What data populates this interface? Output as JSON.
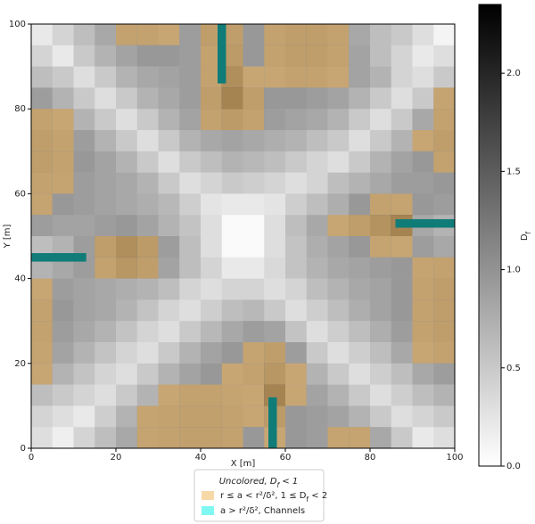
{
  "chart_data": {
    "type": "heatmap",
    "xlabel": "X [m]",
    "ylabel": "Y [m]",
    "xlim": [
      0,
      100
    ],
    "ylim": [
      0,
      100
    ],
    "xticks": [
      0,
      20,
      40,
      60,
      80,
      100
    ],
    "yticks": [
      0,
      20,
      40,
      60,
      80,
      100
    ],
    "z": [
      [
        0.2,
        0.4,
        0.6,
        0.8,
        1.1,
        1.1,
        1.0,
        0.9,
        1.2,
        1.2,
        0.95,
        1.1,
        1.2,
        1.2,
        1.1,
        0.8,
        0.6,
        0.5,
        0.3,
        0.1
      ],
      [
        0.4,
        0.2,
        0.5,
        0.7,
        0.85,
        0.95,
        0.95,
        0.9,
        1.1,
        1.3,
        0.95,
        1.1,
        1.2,
        1.2,
        1.1,
        0.85,
        0.6,
        0.4,
        0.2,
        0.3
      ],
      [
        0.6,
        0.5,
        0.3,
        0.5,
        0.7,
        0.8,
        0.85,
        0.9,
        1.1,
        1.6,
        1.0,
        1.0,
        1.1,
        1.1,
        1.0,
        0.85,
        0.7,
        0.4,
        0.3,
        0.5
      ],
      [
        0.9,
        0.7,
        0.5,
        0.3,
        0.5,
        0.7,
        0.8,
        0.9,
        1.2,
        1.9,
        1.2,
        0.95,
        0.95,
        0.9,
        0.85,
        0.7,
        0.5,
        0.3,
        0.5,
        1.05
      ],
      [
        1.1,
        1.0,
        0.7,
        0.5,
        0.3,
        0.5,
        0.7,
        0.85,
        1.1,
        1.3,
        1.1,
        0.9,
        0.85,
        0.8,
        0.7,
        0.5,
        0.3,
        0.5,
        0.8,
        1.1
      ],
      [
        1.2,
        1.1,
        0.9,
        0.7,
        0.5,
        0.3,
        0.5,
        0.7,
        0.8,
        0.85,
        0.8,
        0.75,
        0.7,
        0.6,
        0.5,
        0.3,
        0.5,
        0.7,
        1.0,
        1.2
      ],
      [
        1.2,
        1.1,
        0.95,
        0.85,
        0.7,
        0.5,
        0.3,
        0.5,
        0.6,
        0.7,
        0.65,
        0.6,
        0.5,
        0.4,
        0.3,
        0.5,
        0.7,
        0.85,
        0.95,
        1.1
      ],
      [
        1.1,
        1.05,
        0.9,
        0.85,
        0.8,
        0.7,
        0.5,
        0.3,
        0.4,
        0.5,
        0.45,
        0.4,
        0.3,
        0.4,
        0.6,
        0.7,
        0.8,
        0.9,
        0.9,
        0.95
      ],
      [
        1.05,
        0.95,
        0.9,
        0.85,
        0.8,
        0.75,
        0.65,
        0.45,
        0.25,
        0.2,
        0.2,
        0.25,
        0.45,
        0.6,
        0.75,
        0.95,
        1.1,
        1.05,
        0.95,
        0.9
      ],
      [
        0.9,
        0.85,
        0.85,
        0.9,
        0.95,
        0.85,
        0.7,
        0.55,
        0.3,
        0.05,
        0.05,
        0.3,
        0.6,
        0.8,
        1.0,
        1.2,
        1.5,
        1.9,
        0.8,
        0.7
      ],
      [
        0.6,
        0.7,
        0.9,
        1.2,
        1.6,
        1.3,
        0.9,
        0.6,
        0.3,
        0.05,
        0.05,
        0.3,
        0.55,
        0.75,
        0.85,
        0.95,
        1.05,
        1.0,
        0.9,
        0.8
      ],
      [
        0.7,
        0.8,
        0.9,
        1.1,
        1.4,
        1.2,
        0.85,
        0.6,
        0.4,
        0.2,
        0.2,
        0.35,
        0.55,
        0.7,
        0.8,
        0.85,
        0.9,
        0.95,
        1.05,
        1.1
      ],
      [
        1.0,
        0.9,
        0.85,
        0.8,
        0.75,
        0.7,
        0.6,
        0.4,
        0.3,
        0.4,
        0.4,
        0.3,
        0.4,
        0.6,
        0.7,
        0.8,
        0.85,
        0.95,
        1.1,
        1.2
      ],
      [
        1.1,
        0.95,
        0.85,
        0.8,
        0.7,
        0.55,
        0.4,
        0.3,
        0.45,
        0.6,
        0.65,
        0.5,
        0.3,
        0.45,
        0.6,
        0.75,
        0.85,
        0.95,
        1.1,
        1.2
      ],
      [
        1.1,
        0.9,
        0.8,
        0.7,
        0.55,
        0.4,
        0.3,
        0.5,
        0.65,
        0.8,
        0.9,
        0.85,
        0.55,
        0.3,
        0.45,
        0.6,
        0.75,
        0.9,
        1.1,
        1.2
      ],
      [
        1.05,
        0.85,
        0.7,
        0.55,
        0.4,
        0.3,
        0.5,
        0.7,
        0.85,
        0.95,
        1.05,
        1.2,
        0.9,
        0.5,
        0.3,
        0.45,
        0.6,
        0.8,
        1.0,
        1.1
      ],
      [
        1.0,
        0.7,
        0.55,
        0.4,
        0.3,
        0.5,
        0.7,
        0.85,
        0.95,
        1.0,
        1.1,
        1.4,
        1.0,
        0.7,
        0.5,
        0.3,
        0.45,
        0.6,
        0.8,
        0.9
      ],
      [
        0.6,
        0.5,
        0.4,
        0.3,
        0.5,
        0.7,
        1.0,
        1.1,
        1.1,
        1.05,
        1.0,
        1.9,
        1.0,
        0.85,
        0.7,
        0.5,
        0.3,
        0.45,
        0.6,
        0.7
      ],
      [
        0.4,
        0.3,
        0.2,
        0.45,
        0.7,
        1.05,
        1.1,
        1.15,
        1.15,
        1.1,
        1.0,
        1.3,
        0.95,
        0.9,
        0.85,
        0.7,
        0.5,
        0.3,
        0.4,
        0.5
      ],
      [
        0.3,
        0.15,
        0.4,
        0.6,
        0.8,
        1.05,
        1.1,
        1.15,
        1.15,
        1.1,
        0.95,
        1.0,
        0.95,
        0.9,
        1.05,
        1.05,
        0.8,
        0.5,
        0.2,
        0.3
      ]
    ],
    "clim": [
      0,
      2.35
    ],
    "colorbar_ticks": [
      {
        "value": 0,
        "label": "0.0"
      },
      0.5,
      {
        "value": 1,
        "label": "1.0"
      },
      {
        "value": 1.5,
        "label": "1.5"
      },
      {
        "value": 2,
        "label": "2.0"
      }
    ],
    "colorbar_label": {
      "text": "D",
      "sub": "f"
    },
    "overlay_range": [
      1,
      2
    ],
    "overlay_color": "#e3b064",
    "channel_color": "#0f7c78",
    "channels": [
      {
        "x": [
          44,
          46
        ],
        "y": [
          86,
          100
        ]
      },
      {
        "x": [
          86,
          100
        ],
        "y": [
          52,
          54
        ]
      },
      {
        "x": [
          0,
          13
        ],
        "y": [
          44,
          46
        ]
      },
      {
        "x": [
          56,
          58
        ],
        "y": [
          0,
          12
        ]
      }
    ],
    "legend": {
      "title": {
        "text": "Uncolored, D",
        "sub": "f",
        "after": " < 1"
      },
      "entries": [
        {
          "text": "r ≤ a < r²/δ², 1 ≤ D",
          "sub": "f",
          "after": " < 2",
          "color": "#f7d9a8"
        },
        {
          "text": "a > r²/δ², Channels",
          "color": "#7ff7f2"
        }
      ]
    }
  }
}
